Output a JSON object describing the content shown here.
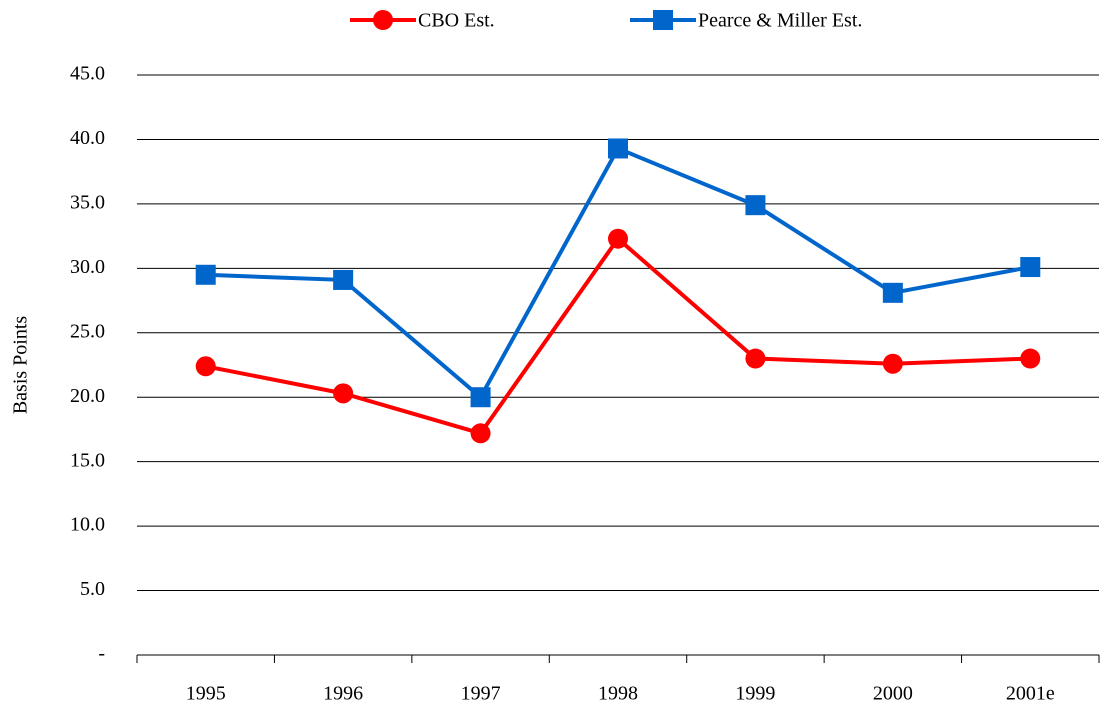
{
  "chart_data": {
    "type": "line",
    "y_label": "Basis Points",
    "categories": [
      "1995",
      "1996",
      "1997",
      "1998",
      "1999",
      "2000",
      "2001e"
    ],
    "series": [
      {
        "name": "CBO Est.",
        "color": "#ff0000",
        "marker": "circle",
        "values": [
          22.4,
          20.3,
          17.2,
          32.3,
          23.0,
          22.6,
          23.0
        ]
      },
      {
        "name": "Pearce & Miller Est.",
        "color": "#0066cc",
        "marker": "square",
        "values": [
          29.5,
          29.1,
          20.0,
          39.3,
          34.9,
          28.1,
          30.1
        ]
      }
    ],
    "ylim": [
      0,
      45
    ],
    "yticks": [
      {
        "value": 0,
        "label": "-"
      },
      {
        "value": 5,
        "label": "5.0"
      },
      {
        "value": 10,
        "label": "10.0"
      },
      {
        "value": 15,
        "label": "15.0"
      },
      {
        "value": 20,
        "label": "20.0"
      },
      {
        "value": 25,
        "label": "25.0"
      },
      {
        "value": 30,
        "label": "30.0"
      },
      {
        "value": 35,
        "label": "35.0"
      },
      {
        "value": 40,
        "label": "40.0"
      },
      {
        "value": 45,
        "label": "45.0"
      }
    ],
    "grid": true,
    "legend": "top"
  }
}
